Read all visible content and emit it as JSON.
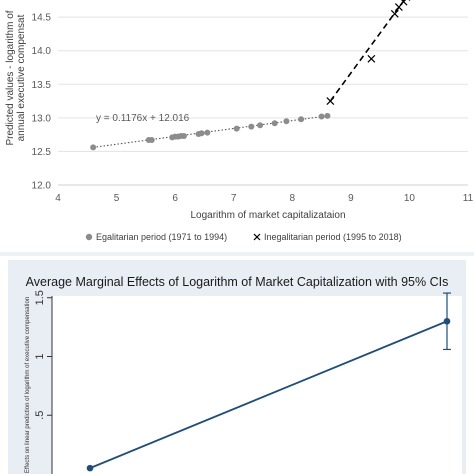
{
  "chart_data": [
    {
      "type": "scatter",
      "title": "",
      "xlabel": "Logarithm of market capitalizataion",
      "ylabel": "Predicted values - logarithm of annual executive compensation",
      "ylabel_lines": [
        "Predicted values - logarithm of",
        "annual executive compensat"
      ],
      "xlim": [
        4,
        11
      ],
      "ylim": [
        12,
        14.8
      ],
      "x_ticks": [
        4,
        5,
        6,
        7,
        8,
        9,
        10,
        11
      ],
      "y_ticks": [
        12,
        12.5,
        13,
        13.5,
        14,
        14.5
      ],
      "grid": "horizontal",
      "legend_position": "bottom",
      "annotation": "y = 0.1176x + 12.016",
      "series": [
        {
          "name": "Egalitarian period (1971 to 1994)",
          "marker": "circle",
          "color": "#8c8c8c",
          "trend": "dotted",
          "x": [
            4.6,
            5.55,
            5.6,
            5.95,
            6.0,
            6.05,
            6.1,
            6.15,
            6.4,
            6.45,
            6.55,
            7.05,
            7.3,
            7.45,
            7.7,
            7.9,
            8.15,
            8.5,
            8.6
          ],
          "y": [
            12.56,
            12.67,
            12.67,
            12.71,
            12.72,
            12.72,
            12.73,
            12.73,
            12.76,
            12.77,
            12.78,
            12.84,
            12.87,
            12.89,
            12.92,
            12.95,
            12.98,
            13.02,
            13.03
          ]
        },
        {
          "name": "Inegalitarian period (1995 to 2018)",
          "marker": "x",
          "color": "#000000",
          "trend": "dashed",
          "x": [
            8.65,
            9.35,
            9.75,
            9.82,
            9.9,
            9.95
          ],
          "y": [
            13.25,
            13.88,
            14.55,
            14.65,
            14.73,
            14.8
          ]
        }
      ]
    },
    {
      "type": "line",
      "title": "Average Marginal Effects of Logarithm of Market Capitalization with 95% CIs",
      "xlabel": "",
      "ylabel": "Effects on linear prediction of logarithm of executive compensation",
      "ylim": [
        0,
        1.6
      ],
      "y_ticks": [
        0.5,
        1,
        1.5
      ],
      "y_tick_labels": [
        ".5",
        "1",
        "1.5"
      ],
      "series": [
        {
          "name": "",
          "color": "#1f4e79",
          "x": [
            0,
            1
          ],
          "y": [
            0.05,
            1.3
          ],
          "ci_lower": [
            null,
            1.06
          ],
          "ci_upper": [
            null,
            1.54
          ]
        }
      ]
    }
  ]
}
